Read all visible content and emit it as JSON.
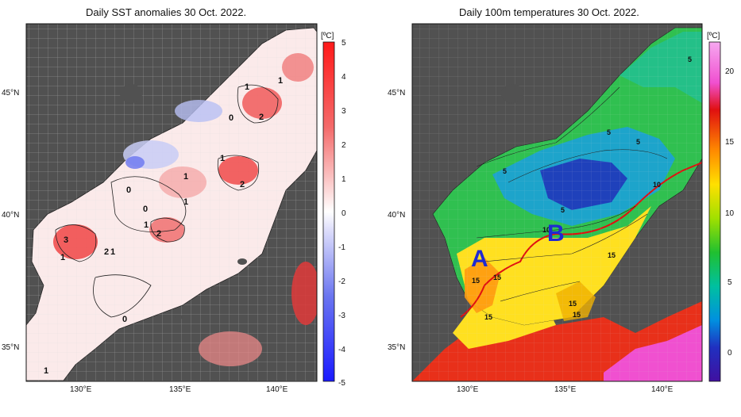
{
  "left_panel": {
    "title": "Daily SST anomalies 30 Oct. 2022.",
    "unit": "[ºC]",
    "colorbar_ticks": [
      "5",
      "4",
      "3",
      "2",
      "1",
      "0",
      "-1",
      "-2",
      "-3",
      "-4",
      "-5"
    ],
    "contour_labels": [
      "1",
      "1",
      "0",
      "2",
      "1",
      "0",
      "0",
      "1",
      "2",
      "1",
      "2",
      "3",
      "1",
      "2",
      "1",
      "1",
      "0",
      "1"
    ]
  },
  "right_panel": {
    "title": "Daily 100m temperatures 30 Oct. 2022.",
    "unit": "[ºC]",
    "colorbar_ticks": [
      "20",
      "15",
      "10",
      "5",
      "0"
    ],
    "contour_labels": [
      "5",
      "5",
      "5",
      "5",
      "5",
      "10",
      "10",
      "15",
      "15",
      "15",
      "15",
      "15",
      "15"
    ],
    "markers": [
      "A",
      "B"
    ]
  },
  "axes": {
    "lat_labels": [
      "45°N",
      "40°N",
      "35°N"
    ],
    "lon_labels": [
      "130°E",
      "135°E",
      "140°E"
    ]
  },
  "colors": {
    "land": "#505050",
    "sst_warm": "#e8302a",
    "sst_cold": "#2a3de0",
    "front": "#e01010",
    "marker": "#1f2ad1"
  }
}
